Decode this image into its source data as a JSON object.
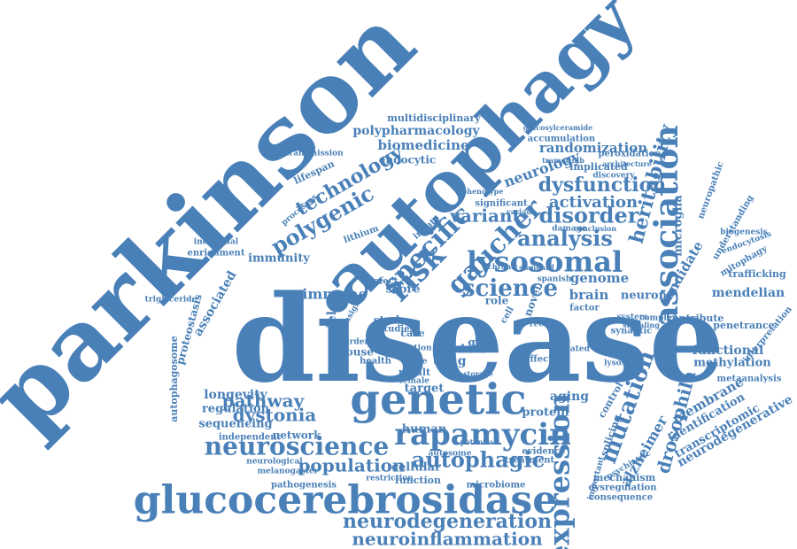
{
  "colors": {
    "word": "#4a80b8",
    "background": "#ffffff"
  },
  "cloud": {
    "words": [
      "parkinson",
      "disease",
      "autophagy",
      "genetic",
      "glucocerebrosidase",
      "rapamycin",
      "neuroscience",
      "lysosomal",
      "association",
      "expression",
      "risk",
      "specific",
      "gaucher",
      "polygenic",
      "technology",
      "science",
      "analysis",
      "variant",
      "disorder",
      "neurodegeneration",
      "neuroinflammation",
      "autophagic",
      "population",
      "pathway",
      "dystonia",
      "dysfunction",
      "heritability",
      "mutation",
      "drosophila",
      "alzheimer",
      "activation",
      "neurology",
      "randomization",
      "biomedicine",
      "polypharmacology",
      "multidisciplinary",
      "endocytic",
      "lifespan",
      "immunity",
      "immune",
      "score",
      "model",
      "genome",
      "brain",
      "neuron",
      "microglia",
      "candidate",
      "mendelian",
      "functional",
      "methylation",
      "membrane",
      "identification",
      "transcriptomic",
      "neurodegenerative",
      "understanding",
      "neuropathic",
      "longevity",
      "regulation",
      "sequencing",
      "network",
      "human",
      "protein",
      "aging",
      "target",
      "drug",
      "data",
      "gwas",
      "study",
      "mouse",
      "health",
      "result",
      "case",
      "role",
      "novel",
      "defect",
      "cell",
      "effect",
      "control",
      "splicing",
      "synaptic",
      "function",
      "cellular",
      "microbiome",
      "evidence",
      "treatment",
      "mechanism",
      "dysregulation",
      "consequence",
      "pathogenesis",
      "associated",
      "proteostasis",
      "autophagosome",
      "enrichment",
      "individual",
      "lithium",
      "studies",
      "variation",
      "processes",
      "transmission",
      "triglyceride",
      "independent",
      "neurological",
      "melanogaster",
      "restriction",
      "autosome",
      "implicated",
      "peroxidation",
      "accumulation",
      "trafficking",
      "mitophagy",
      "biogenesis",
      "endocytosis",
      "penetrance",
      "interpretation",
      "metaanalysis",
      "contribute",
      "complex",
      "lysosome",
      "psychiatric",
      "important",
      "factor",
      "system",
      "signaling",
      "significant",
      "phenotype",
      "discovery",
      "architecture",
      "trametinib",
      "glucosylceramide",
      "innate",
      "burden",
      "variant",
      "chronic",
      "spanish",
      "damage",
      "conclusion",
      "recent",
      "related",
      "standard",
      "potential",
      "female",
      "storage",
      "cause",
      "insight"
    ]
  }
}
